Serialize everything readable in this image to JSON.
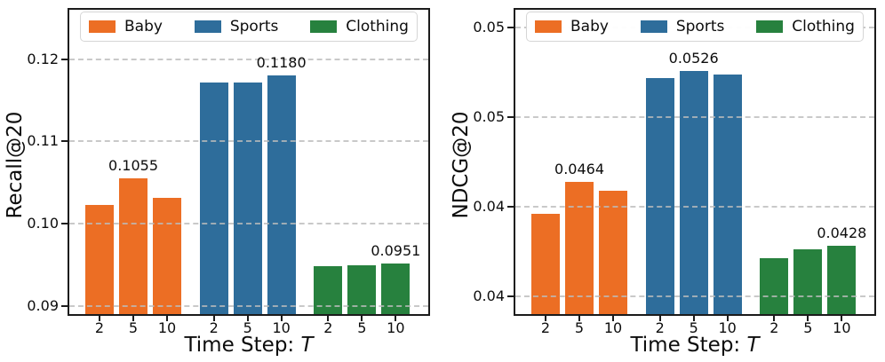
{
  "figure": {
    "background": "#ffffff",
    "palette": {
      "baby": "#ec6e24",
      "sports": "#2e6d9b",
      "clothing": "#27813e"
    },
    "grid_color": "#bbbbbb",
    "spine_color": "#1b1b1b"
  },
  "chart_data": [
    {
      "type": "bar",
      "title": "",
      "ylabel": "Recall@20",
      "xlabel_prefix": "Time Step: ",
      "xlabel_var": "T",
      "categories": [
        "2",
        "5",
        "10"
      ],
      "series": [
        {
          "name": "Baby",
          "color": "#ec6e24",
          "values": [
            0.1023,
            0.1055,
            0.1031
          ]
        },
        {
          "name": "Sports",
          "color": "#2e6d9b",
          "values": [
            0.1172,
            0.1172,
            0.118
          ]
        },
        {
          "name": "Clothing",
          "color": "#27813e",
          "values": [
            0.0948,
            0.0949,
            0.0951
          ]
        }
      ],
      "annotations": [
        {
          "series": 0,
          "cat": 1,
          "text": "0.1055"
        },
        {
          "series": 1,
          "cat": 2,
          "text": "0.1180"
        },
        {
          "series": 2,
          "cat": 2,
          "text": "0.0951"
        }
      ],
      "ylim": [
        0.089,
        0.126
      ],
      "yticks": [
        {
          "value": 0.09,
          "label": "0.09"
        },
        {
          "value": 0.1,
          "label": "0.10"
        },
        {
          "value": 0.11,
          "label": "0.11"
        },
        {
          "value": 0.12,
          "label": "0.12"
        }
      ],
      "grid": "dashed",
      "legend_position": "upper center"
    },
    {
      "type": "bar",
      "title": "",
      "ylabel": "NDCG@20",
      "xlabel_prefix": "Time Step: ",
      "xlabel_var": "T",
      "categories": [
        "2",
        "5",
        "10"
      ],
      "series": [
        {
          "name": "Baby",
          "color": "#ec6e24",
          "values": [
            0.0446,
            0.0464,
            0.0459
          ]
        },
        {
          "name": "Sports",
          "color": "#2e6d9b",
          "values": [
            0.0522,
            0.0526,
            0.0524
          ]
        },
        {
          "name": "Clothing",
          "color": "#27813e",
          "values": [
            0.0421,
            0.0426,
            0.0428
          ]
        }
      ],
      "annotations": [
        {
          "series": 0,
          "cat": 1,
          "text": "0.0464"
        },
        {
          "series": 1,
          "cat": 1,
          "text": "0.0526"
        },
        {
          "series": 2,
          "cat": 2,
          "text": "0.0428"
        }
      ],
      "ylim": [
        0.039,
        0.056
      ],
      "yticks": [
        {
          "value": 0.04,
          "label": "0.04"
        },
        {
          "value": 0.045,
          "label": "0.04"
        },
        {
          "value": 0.05,
          "label": "0.05"
        },
        {
          "value": 0.055,
          "label": "0.05"
        }
      ],
      "grid": "dashed",
      "legend_position": "upper center"
    }
  ]
}
